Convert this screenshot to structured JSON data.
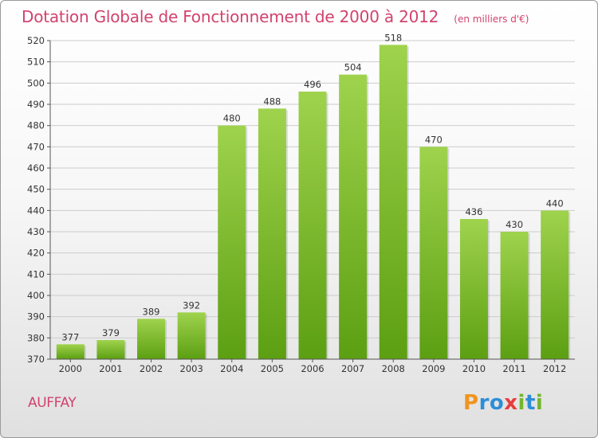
{
  "title": "Dotation Globale de Fonctionnement de 2000 à 2012",
  "unit": "(en milliers d'€)",
  "commune": "AUFFAY",
  "brand": {
    "letters": [
      "P",
      "r",
      "o",
      "x",
      "i",
      "t",
      "i"
    ],
    "colors": [
      "#f0941e",
      "#2d8ed6",
      "#2d8ed6",
      "#e73d3d",
      "#73b72c",
      "#2d8ed6",
      "#73b72c"
    ]
  },
  "colors": {
    "title": "#d2426e",
    "bar_light": "#9fd34d",
    "bar_dark": "#5c9f12",
    "grid": "#cccccc"
  },
  "chart_data": {
    "type": "bar",
    "categories": [
      "2000",
      "2001",
      "2002",
      "2003",
      "2004",
      "2005",
      "2006",
      "2007",
      "2008",
      "2009",
      "2010",
      "2011",
      "2012"
    ],
    "values": [
      377,
      379,
      389,
      392,
      480,
      488,
      496,
      504,
      518,
      470,
      436,
      430,
      440
    ],
    "ylim": [
      370,
      520
    ],
    "yticks": [
      370,
      380,
      390,
      400,
      410,
      420,
      430,
      440,
      450,
      460,
      470,
      480,
      490,
      500,
      510,
      520
    ],
    "grid": true,
    "data_labels": true
  }
}
